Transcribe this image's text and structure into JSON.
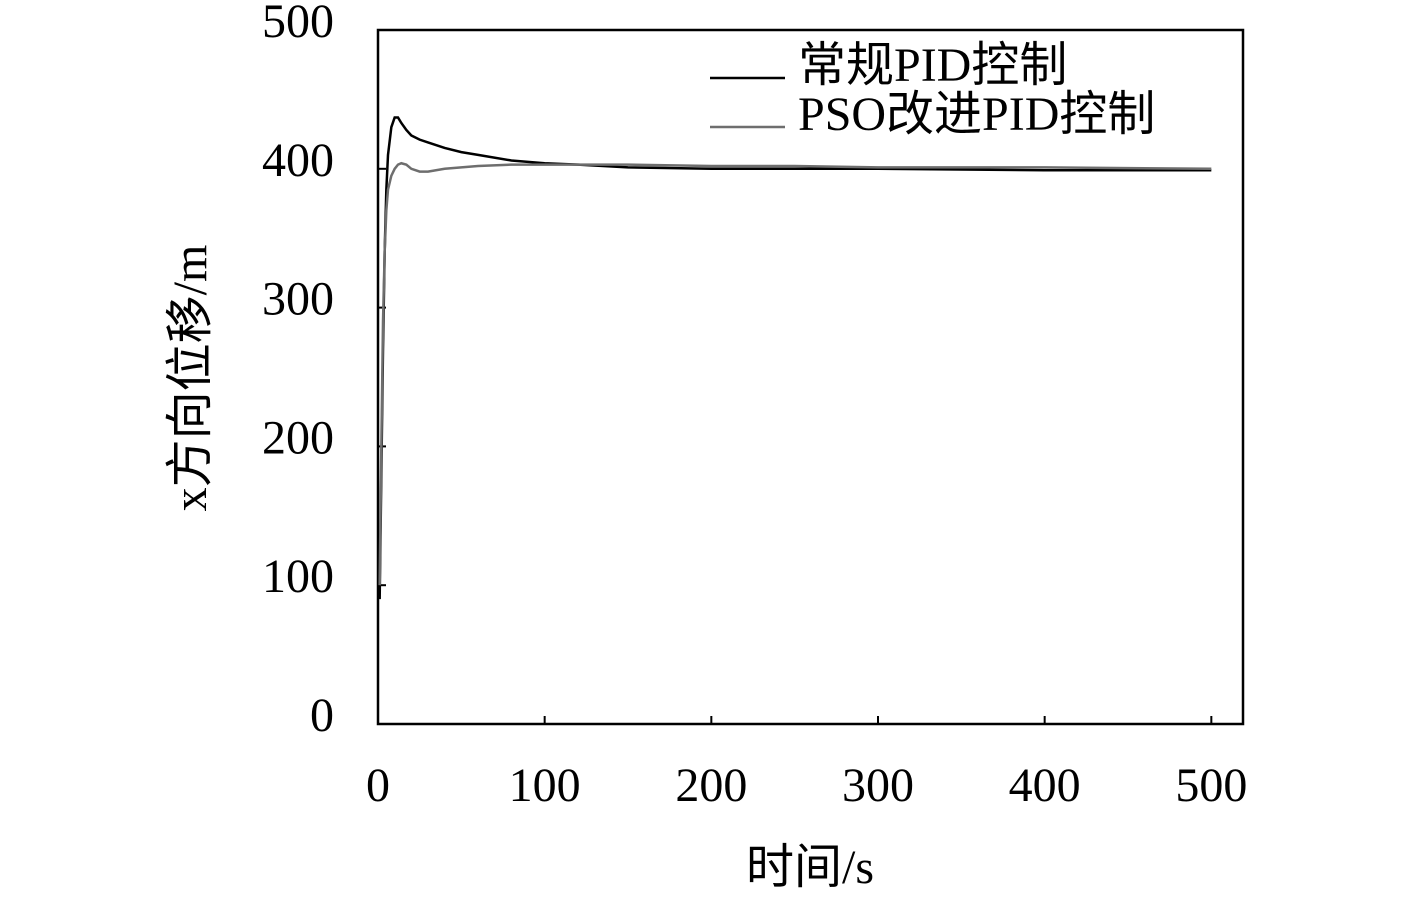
{
  "chart_data": {
    "type": "line",
    "xlabel": "时间/s",
    "ylabel": "x方向位移/m",
    "x": [
      1,
      2,
      3,
      4,
      5,
      6,
      8,
      10,
      12,
      14,
      17,
      20,
      25,
      30,
      40,
      50,
      60,
      80,
      100,
      120,
      150,
      200,
      250,
      300,
      400,
      500
    ],
    "series": [
      {
        "name": "常规PID控制",
        "color": "#000000",
        "values": [
          90,
          180,
          270,
          340,
          385,
          410,
          430,
          437,
          437,
          433,
          428,
          424,
          421,
          419,
          415,
          412,
          410,
          406,
          404,
          403,
          401,
          400,
          400,
          400,
          399,
          399
        ]
      },
      {
        "name": "PSO改进PID控制",
        "color": "#6e6e6e",
        "values": [
          100,
          200,
          290,
          340,
          370,
          385,
          395,
          400,
          403,
          404,
          403,
          400,
          398,
          398,
          400,
          401,
          402,
          403,
          403,
          403,
          403,
          402,
          402,
          401,
          401,
          400
        ]
      }
    ],
    "xlim": [
      0,
      519
    ],
    "ylim": [
      0,
      500
    ],
    "xticks": [
      0,
      100,
      200,
      300,
      400,
      500
    ],
    "yticks": [
      0,
      100,
      200,
      300,
      400,
      500
    ],
    "legend": "upper right"
  }
}
